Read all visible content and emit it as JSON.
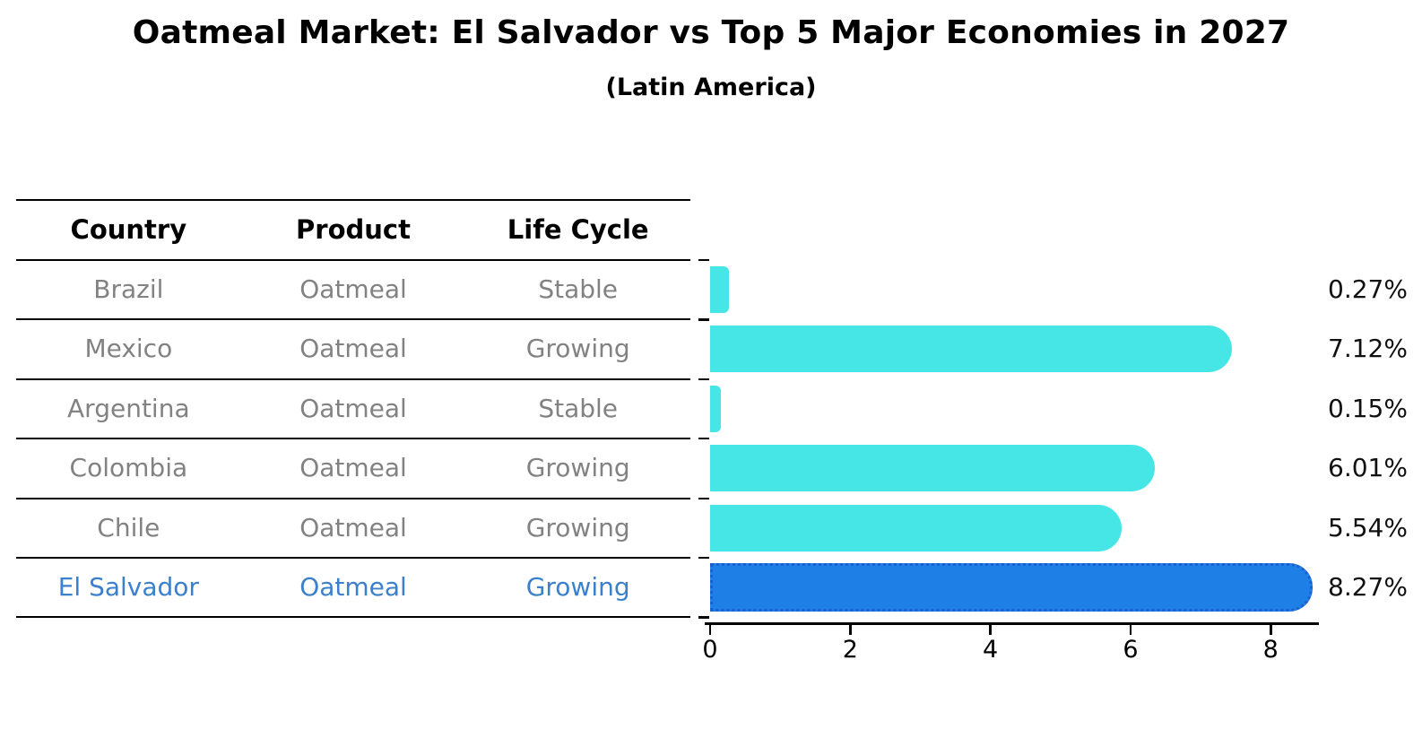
{
  "title": "Oatmeal Market: El Salvador vs Top 5 Major Economies in 2027",
  "subtitle": "(Latin America)",
  "table": {
    "headers": [
      "Country",
      "Product",
      "Life Cycle"
    ],
    "rows": [
      {
        "country": "Brazil",
        "product": "Oatmeal",
        "life_cycle": "Stable",
        "highlight": false
      },
      {
        "country": "Mexico",
        "product": "Oatmeal",
        "life_cycle": "Growing",
        "highlight": false
      },
      {
        "country": "Argentina",
        "product": "Oatmeal",
        "life_cycle": "Stable",
        "highlight": false
      },
      {
        "country": "Colombia",
        "product": "Oatmeal",
        "life_cycle": "Growing",
        "highlight": false
      },
      {
        "country": "Chile",
        "product": "Oatmeal",
        "life_cycle": "Growing",
        "highlight": false
      },
      {
        "country": "El Salvador",
        "product": "Oatmeal",
        "life_cycle": "Growing",
        "highlight": true
      }
    ]
  },
  "chart_data": {
    "type": "bar",
    "orientation": "horizontal",
    "title": "Oatmeal Market: El Salvador vs Top 5 Major Economies in 2027",
    "subtitle": "(Latin America)",
    "categories": [
      "Brazil",
      "Mexico",
      "Argentina",
      "Colombia",
      "Chile",
      "El Salvador"
    ],
    "values": [
      0.27,
      7.12,
      0.15,
      6.01,
      5.54,
      8.27
    ],
    "value_labels": [
      "0.27%",
      "7.12%",
      "0.15%",
      "6.01%",
      "5.54%",
      "8.27%"
    ],
    "xlabel": "",
    "ylabel": "",
    "xlim": [
      0,
      8.67
    ],
    "xticks": [
      0,
      2,
      4,
      6,
      8
    ],
    "grid": false,
    "legend": false,
    "highlight_index": 5,
    "bar_color": "#46E6E6",
    "highlight_bar_color": "#1E80E6",
    "highlight_border_color": "#1D5FD0"
  },
  "colors": {
    "header_text": "#000000",
    "row_text": "#828282",
    "highlight_text": "#3A80CC",
    "value_label_text": "#111111",
    "axis": "#000000"
  }
}
